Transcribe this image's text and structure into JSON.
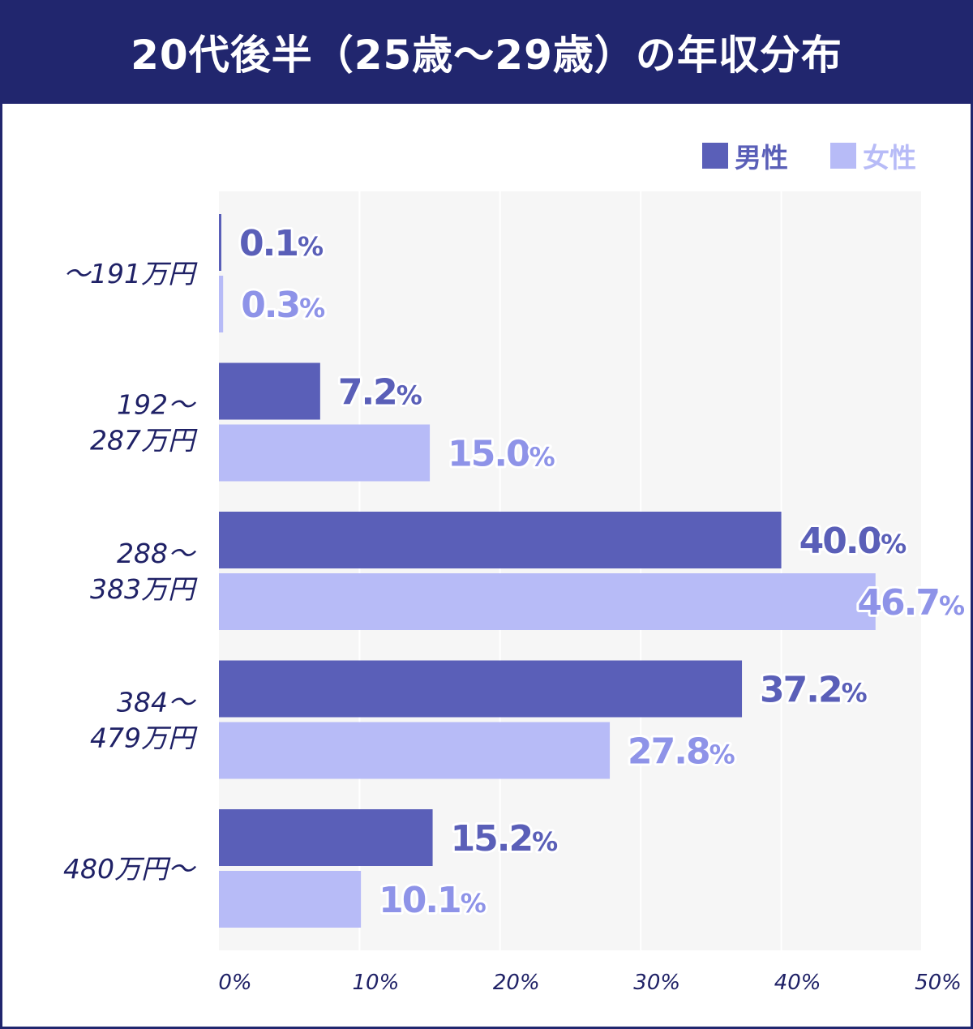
{
  "colors": {
    "navy": "#21266e",
    "male": "#5a5fb8",
    "female": "#b7bbf7",
    "female_text": "#8e93e8",
    "plot_bg": "#f6f6f6",
    "grid": "#ffffff"
  },
  "chart_data": {
    "type": "bar",
    "orientation": "horizontal",
    "title": "20代後半（25歳〜29歳）の年収分布",
    "categories": [
      [
        "〜191万円"
      ],
      [
        "192〜",
        "287万円"
      ],
      [
        "288〜",
        "383万円"
      ],
      [
        "384〜",
        "479万円"
      ],
      [
        "480万円〜"
      ]
    ],
    "series": [
      {
        "name": "男性",
        "values": [
          0.1,
          7.2,
          40.0,
          37.2,
          15.2
        ]
      },
      {
        "name": "女性",
        "values": [
          0.3,
          15.0,
          46.7,
          27.8,
          10.1
        ]
      }
    ],
    "value_labels": [
      [
        "0.1",
        "7.2",
        "40.0",
        "37.2",
        "15.2"
      ],
      [
        "0.3",
        "15.0",
        "46.7",
        "27.8",
        "10.1"
      ]
    ],
    "value_suffix": "%",
    "xlim": [
      0,
      50
    ],
    "xticks": [
      "0%",
      "10%",
      "20%",
      "30%",
      "40%",
      "50%"
    ],
    "grid": true,
    "legend_position": "top-right"
  }
}
